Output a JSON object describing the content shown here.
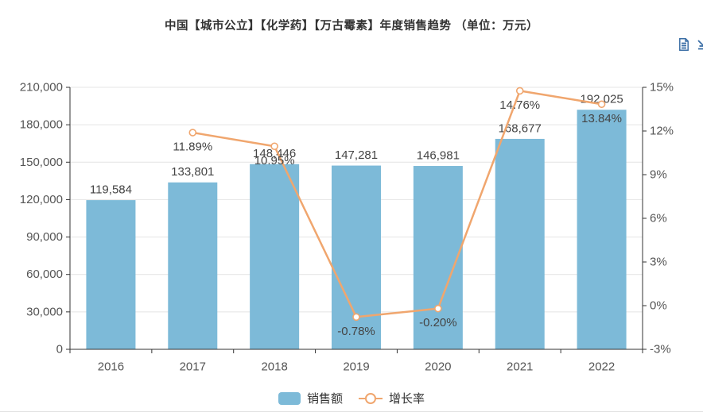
{
  "chart_data": {
    "type": "combo",
    "title": "中国【城市公立】【化学药】【万古霉素】年度销售趋势 （单位：万元）",
    "categories": [
      "2016",
      "2017",
      "2018",
      "2019",
      "2020",
      "2021",
      "2022"
    ],
    "series": [
      {
        "name": "销售额",
        "type": "bar",
        "axis": "left",
        "color": "#7DBAD8",
        "values": [
          119584,
          133801,
          148446,
          147281,
          146981,
          168677,
          192025
        ],
        "value_labels": [
          "119,584",
          "133,801",
          "148,446",
          "147,281",
          "146,981",
          "168,677",
          "192,025"
        ]
      },
      {
        "name": "增长率",
        "type": "line",
        "axis": "right",
        "color": "#F0A66E",
        "values": [
          null,
          11.89,
          10.95,
          -0.78,
          -0.2,
          14.76,
          13.84
        ],
        "value_labels": [
          null,
          "11.89%",
          "10.95%",
          "-0.78%",
          "-0.20%",
          "14.76%",
          "13.84%"
        ]
      }
    ],
    "left_axis": {
      "min": 0,
      "max": 210000,
      "interval": 30000,
      "tick_labels": [
        "0",
        "30,000",
        "60,000",
        "90,000",
        "120,000",
        "150,000",
        "180,000",
        "210,000"
      ]
    },
    "right_axis": {
      "min": -3,
      "max": 15,
      "interval": 3,
      "tick_labels": [
        "-3%",
        "0%",
        "3%",
        "6%",
        "9%",
        "12%",
        "15%"
      ]
    },
    "grid": true,
    "legend_position": "bottom"
  },
  "legend": {
    "items": [
      {
        "label": "销售额"
      },
      {
        "label": "增长率"
      }
    ]
  },
  "toolbox": {
    "icon_color": "#3A6EA5",
    "items": [
      {
        "name": "data-view-icon"
      },
      {
        "name": "save-image-icon"
      }
    ]
  },
  "colors": {
    "bar": "#7DBAD8",
    "line": "#F0A66E",
    "grid_line": "#E4E4E4",
    "axis_line": "#333333",
    "tick_text": "#555555",
    "label_text": "#444444"
  }
}
